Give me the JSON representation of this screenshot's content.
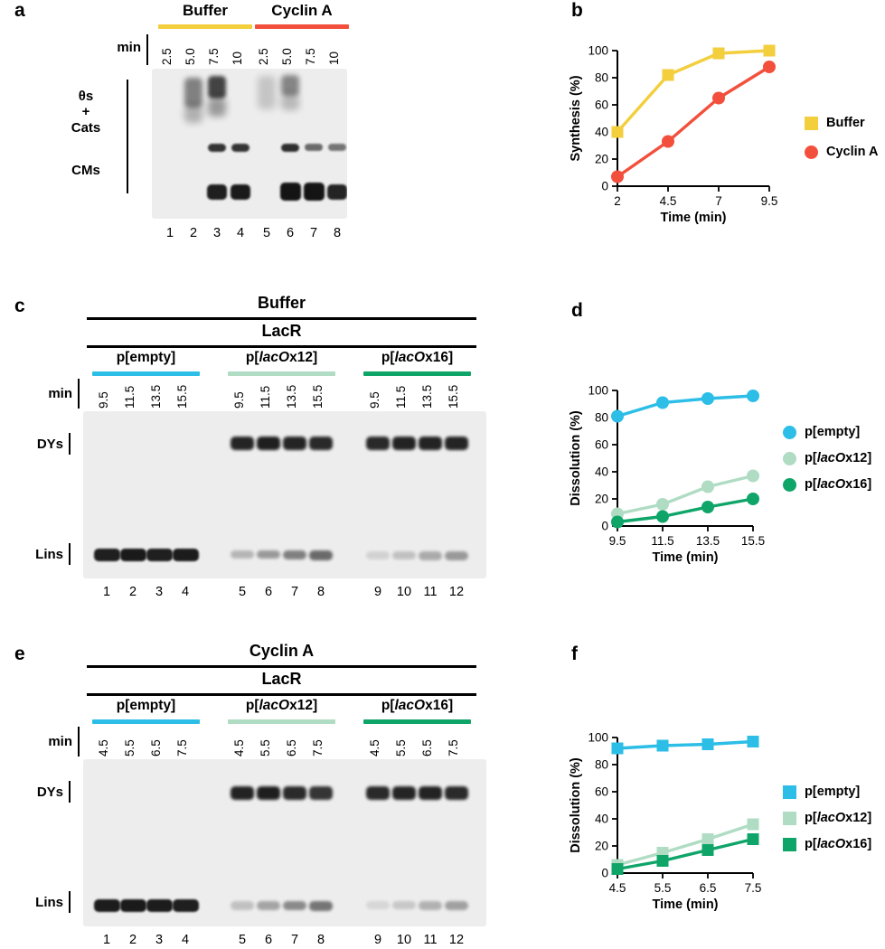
{
  "colors": {
    "buffer_yellow": "#F3CE3D",
    "cyclinA_red": "#F2503C",
    "empty_cyan": "#2CBEE6",
    "laco12_green": "#AFDCC3",
    "laco16_green": "#0FA569",
    "gel_bg": "#EDEDED",
    "band_dark": "#141414"
  },
  "panels": {
    "a": {
      "label": "a",
      "min_label": "min",
      "groups": [
        {
          "label_parts": {
            "pre": "Buffer",
            "it": "",
            "post": ""
          },
          "color": "buffer_yellow",
          "lanes": [
            1,
            4
          ]
        },
        {
          "label_parts": {
            "pre": "Cyclin A",
            "it": "",
            "post": ""
          },
          "color": "cyclinA_red",
          "lanes": [
            5,
            8
          ]
        }
      ],
      "time_labels": [
        "2.5",
        "5.0",
        "7.5",
        "10",
        "2.5",
        "5.0",
        "7.5",
        "10"
      ],
      "side_labels": [
        [
          "θs",
          "+",
          "Cats"
        ],
        [
          "CMs"
        ]
      ],
      "lane_numbers": [
        "1",
        "2",
        "3",
        "4",
        "5",
        "6",
        "7",
        "8"
      ],
      "bands": [
        [
          2,
          0.06,
          0.2,
          0.5,
          3
        ],
        [
          2,
          0.24,
          0.12,
          0.28,
          4
        ],
        [
          3,
          0.05,
          0.15,
          0.78,
          2
        ],
        [
          3,
          0.19,
          0.13,
          0.38,
          4
        ],
        [
          3,
          0.5,
          0.055,
          0.85,
          1
        ],
        [
          3,
          0.77,
          0.105,
          0.95,
          1,
          2
        ],
        [
          4,
          0.5,
          0.055,
          0.85,
          1
        ],
        [
          4,
          0.77,
          0.105,
          0.97,
          1,
          2
        ],
        [
          5,
          0.05,
          0.22,
          0.18,
          4
        ],
        [
          6,
          0.04,
          0.14,
          0.48,
          3
        ],
        [
          6,
          0.17,
          0.11,
          0.24,
          4
        ],
        [
          6,
          0.5,
          0.055,
          0.88,
          1
        ],
        [
          6,
          0.76,
          0.12,
          1.0,
          1,
          3
        ],
        [
          7,
          0.5,
          0.05,
          0.6,
          1
        ],
        [
          7,
          0.76,
          0.12,
          1.0,
          1,
          3
        ],
        [
          8,
          0.5,
          0.05,
          0.55,
          1
        ],
        [
          8,
          0.77,
          0.105,
          0.92,
          1,
          2
        ]
      ]
    },
    "b": {
      "label": "b"
    },
    "c": {
      "label": "c",
      "top_headers": [
        "Buffer",
        "LacR"
      ],
      "min_label": "min",
      "groups": [
        {
          "label_parts": {
            "pre": "p[",
            "it": "",
            "post": "empty]"
          },
          "color": "empty_cyan",
          "lanes": [
            1,
            4
          ]
        },
        {
          "label_parts": {
            "pre": "p[",
            "it": "lacO",
            "post": "x12]"
          },
          "color": "laco12_green",
          "lanes": [
            5,
            8
          ]
        },
        {
          "label_parts": {
            "pre": "p[",
            "it": "lacO",
            "post": "x16]"
          },
          "color": "laco16_green",
          "lanes": [
            9,
            12
          ]
        }
      ],
      "time_labels": [
        "9.5",
        "11.5",
        "13.5",
        "15.5",
        "9.5",
        "11.5",
        "13.5",
        "15.5",
        "9.5",
        "11.5",
        "13.5",
        "15.5"
      ],
      "side_labels": [
        [
          "DYs"
        ],
        [
          "Lins"
        ]
      ],
      "lane_numbers": [
        "1",
        "2",
        "3",
        "4",
        "5",
        "6",
        "7",
        "8",
        "9",
        "10",
        "11",
        "12"
      ],
      "bands": [
        [
          1,
          0.82,
          0.075,
          0.95,
          1,
          3
        ],
        [
          2,
          0.82,
          0.078,
          0.97,
          1,
          3
        ],
        [
          3,
          0.82,
          0.078,
          0.95,
          1,
          3
        ],
        [
          4,
          0.82,
          0.08,
          0.96,
          1,
          3
        ],
        [
          5,
          0.15,
          0.085,
          0.92,
          1.5
        ],
        [
          6,
          0.15,
          0.085,
          0.95,
          1.5
        ],
        [
          7,
          0.15,
          0.085,
          0.92,
          1.5
        ],
        [
          8,
          0.15,
          0.085,
          0.9,
          1.5
        ],
        [
          5,
          0.83,
          0.05,
          0.25,
          1.5
        ],
        [
          6,
          0.83,
          0.05,
          0.38,
          1.5
        ],
        [
          7,
          0.83,
          0.055,
          0.5,
          1.5
        ],
        [
          8,
          0.83,
          0.06,
          0.6,
          1.5
        ],
        [
          9,
          0.15,
          0.085,
          0.9,
          1.5
        ],
        [
          10,
          0.15,
          0.085,
          0.93,
          1.5
        ],
        [
          11,
          0.15,
          0.085,
          0.93,
          1.5
        ],
        [
          12,
          0.15,
          0.085,
          0.92,
          1.5
        ],
        [
          9,
          0.84,
          0.045,
          0.12,
          1.5
        ],
        [
          10,
          0.84,
          0.045,
          0.2,
          1.5
        ],
        [
          11,
          0.84,
          0.05,
          0.3,
          1.5
        ],
        [
          12,
          0.84,
          0.05,
          0.38,
          1.5
        ]
      ]
    },
    "d": {
      "label": "d"
    },
    "e": {
      "label": "e",
      "top_headers": [
        "Cyclin A",
        "LacR"
      ],
      "min_label": "min",
      "groups": [
        {
          "label_parts": {
            "pre": "p[",
            "it": "",
            "post": "empty]"
          },
          "color": "empty_cyan",
          "lanes": [
            1,
            4
          ]
        },
        {
          "label_parts": {
            "pre": "p[",
            "it": "lacO",
            "post": "x12]"
          },
          "color": "laco12_green",
          "lanes": [
            5,
            8
          ]
        },
        {
          "label_parts": {
            "pre": "p[",
            "it": "lacO",
            "post": "x16]"
          },
          "color": "laco16_green",
          "lanes": [
            9,
            12
          ]
        }
      ],
      "time_labels": [
        "4.5",
        "5.5",
        "6.5",
        "7.5",
        "4.5",
        "5.5",
        "6.5",
        "7.5",
        "4.5",
        "5.5",
        "6.5",
        "7.5"
      ],
      "side_labels": [
        [
          "DYs"
        ],
        [
          "Lins"
        ]
      ],
      "lane_numbers": [
        "1",
        "2",
        "3",
        "4",
        "5",
        "6",
        "7",
        "8",
        "9",
        "10",
        "11",
        "12"
      ],
      "bands": [
        [
          1,
          0.84,
          0.075,
          0.96,
          1,
          3
        ],
        [
          2,
          0.84,
          0.075,
          0.97,
          1,
          3
        ],
        [
          3,
          0.84,
          0.075,
          0.96,
          1,
          3
        ],
        [
          4,
          0.84,
          0.075,
          0.95,
          1,
          3
        ],
        [
          5,
          0.16,
          0.085,
          0.93,
          1.5
        ],
        [
          6,
          0.16,
          0.085,
          0.95,
          1.5
        ],
        [
          7,
          0.16,
          0.085,
          0.9,
          1.5
        ],
        [
          8,
          0.16,
          0.085,
          0.85,
          1.5
        ],
        [
          5,
          0.85,
          0.05,
          0.2,
          1.5
        ],
        [
          6,
          0.85,
          0.05,
          0.33,
          1.5
        ],
        [
          7,
          0.85,
          0.055,
          0.45,
          1.5
        ],
        [
          8,
          0.85,
          0.06,
          0.55,
          1.5
        ],
        [
          9,
          0.16,
          0.085,
          0.9,
          1.5
        ],
        [
          10,
          0.16,
          0.085,
          0.92,
          1.5
        ],
        [
          11,
          0.16,
          0.085,
          0.93,
          1.5
        ],
        [
          12,
          0.16,
          0.085,
          0.9,
          1.5
        ],
        [
          9,
          0.85,
          0.045,
          0.1,
          1.5
        ],
        [
          10,
          0.85,
          0.045,
          0.17,
          1.5
        ],
        [
          11,
          0.85,
          0.05,
          0.27,
          1.5
        ],
        [
          12,
          0.85,
          0.05,
          0.35,
          1.5
        ]
      ]
    },
    "f": {
      "label": "f"
    }
  },
  "chart_data": [
    {
      "panel": "b",
      "type": "line",
      "x": [
        2,
        4.5,
        7,
        9.5
      ],
      "x_tick_labels": [
        "2",
        "4.5",
        "7",
        "9.5"
      ],
      "xlabel": "Time (min)",
      "ylabel": "Synthesis (%)",
      "ylim": [
        0,
        100
      ],
      "yticks": [
        0,
        20,
        40,
        60,
        80,
        100
      ],
      "grid": false,
      "legend_position": "right",
      "series": [
        {
          "name": "Buffer",
          "label_parts": {
            "pre": "Buffer",
            "it": "",
            "post": ""
          },
          "marker": "square",
          "color": "buffer_yellow",
          "values": [
            40,
            82,
            98,
            100
          ]
        },
        {
          "name": "Cyclin A",
          "label_parts": {
            "pre": "Cyclin A",
            "it": "",
            "post": ""
          },
          "marker": "circle",
          "color": "cyclinA_red",
          "values": [
            7,
            33,
            65,
            88
          ]
        }
      ]
    },
    {
      "panel": "d",
      "type": "line",
      "x": [
        9.5,
        11.5,
        13.5,
        15.5
      ],
      "x_tick_labels": [
        "9.5",
        "11.5",
        "13.5",
        "15.5"
      ],
      "xlabel": "Time (min)",
      "ylabel": "Dissolution (%)",
      "ylim": [
        0,
        100
      ],
      "yticks": [
        0,
        20,
        40,
        60,
        80,
        100
      ],
      "grid": false,
      "legend_position": "right",
      "series": [
        {
          "name": "p[empty]",
          "label_parts": {
            "pre": "p[",
            "it": "",
            "post": "empty]"
          },
          "marker": "circle",
          "color": "empty_cyan",
          "values": [
            81,
            91,
            94,
            96
          ]
        },
        {
          "name": "p[lacOx12]",
          "label_parts": {
            "pre": "p[",
            "it": "lacO",
            "post": "x12]"
          },
          "marker": "circle",
          "color": "laco12_green",
          "values": [
            9,
            16,
            29,
            37
          ]
        },
        {
          "name": "p[lacOx16]",
          "label_parts": {
            "pre": "p[",
            "it": "lacO",
            "post": "x16]"
          },
          "marker": "circle",
          "color": "laco16_green",
          "values": [
            3,
            7,
            14,
            20
          ]
        }
      ]
    },
    {
      "panel": "f",
      "type": "line",
      "x": [
        4.5,
        5.5,
        6.5,
        7.5
      ],
      "x_tick_labels": [
        "4.5",
        "5.5",
        "6.5",
        "7.5"
      ],
      "xlabel": "Time (min)",
      "ylabel": "Dissolution (%)",
      "ylim": [
        0,
        100
      ],
      "yticks": [
        0,
        20,
        40,
        60,
        80,
        100
      ],
      "grid": false,
      "legend_position": "right",
      "series": [
        {
          "name": "p[empty]",
          "label_parts": {
            "pre": "p[",
            "it": "",
            "post": "empty]"
          },
          "marker": "square",
          "color": "empty_cyan",
          "values": [
            92,
            94,
            95,
            97
          ]
        },
        {
          "name": "p[lacOx12]",
          "label_parts": {
            "pre": "p[",
            "it": "lacO",
            "post": "x12]"
          },
          "marker": "square",
          "color": "laco12_green",
          "values": [
            6,
            15,
            25,
            36
          ]
        },
        {
          "name": "p[lacOx16]",
          "label_parts": {
            "pre": "p[",
            "it": "lacO",
            "post": "x16]"
          },
          "marker": "square",
          "color": "laco16_green",
          "values": [
            3,
            9,
            17,
            25
          ]
        }
      ]
    }
  ]
}
